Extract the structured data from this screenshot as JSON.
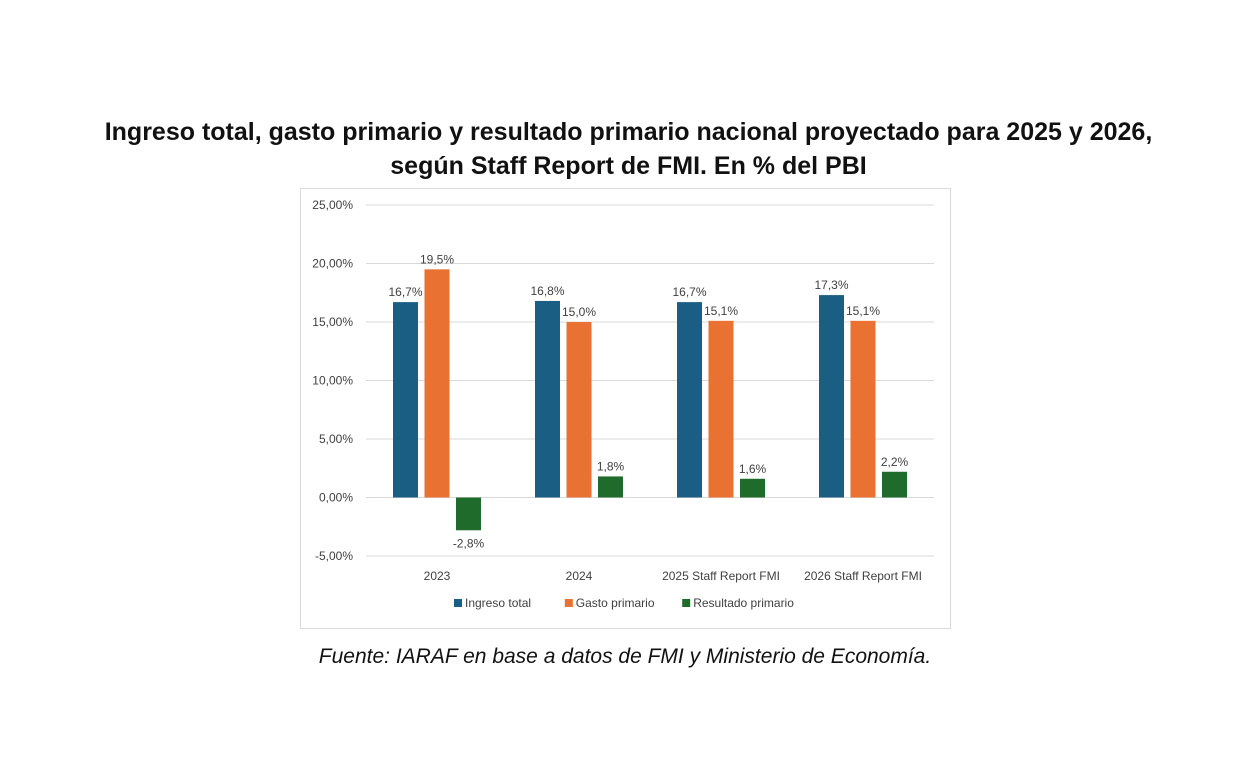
{
  "title_line1": "Ingreso total, gasto primario y resultado primario nacional proyectado para 2025  y 2026,",
  "title_line2": "según Staff Report de FMI. En % del PBI",
  "source": "Fuente:  IARAF en base a datos de FMI y Ministerio  de Economía.",
  "chart_data": {
    "type": "bar",
    "title": "Ingreso total, gasto primario y resultado primario nacional proyectado para 2025 y 2026, según Staff Report de FMI. En % del PBI",
    "xlabel": "",
    "ylabel": "",
    "ylim": [
      -5,
      25
    ],
    "yticks": [
      -5,
      0,
      5,
      10,
      15,
      20,
      25
    ],
    "ytick_labels": [
      "-5,00%",
      "0,00%",
      "5,00%",
      "10,00%",
      "15,00%",
      "20,00%",
      "25,00%"
    ],
    "grid": true,
    "legend_position": "bottom",
    "categories": [
      "2023",
      "2024",
      "2025 Staff Report FMI",
      "2026 Staff Report FMI"
    ],
    "series": [
      {
        "name": "Ingreso total",
        "color": "#1b5e84",
        "values": [
          16.7,
          16.8,
          16.7,
          17.3
        ],
        "labels": [
          "16,7%",
          "16,8%",
          "16,7%",
          "17,3%"
        ]
      },
      {
        "name": "Gasto primario",
        "color": "#e97132",
        "values": [
          19.5,
          15.0,
          15.1,
          15.1
        ],
        "labels": [
          "19,5%",
          "15,0%",
          "15,1%",
          "15,1%"
        ]
      },
      {
        "name": "Resultado primario",
        "color": "#1e6b2b",
        "values": [
          -2.8,
          1.8,
          1.6,
          2.2
        ],
        "labels": [
          "-2,8%",
          "1,8%",
          "1,6%",
          "2,2%"
        ]
      }
    ]
  }
}
